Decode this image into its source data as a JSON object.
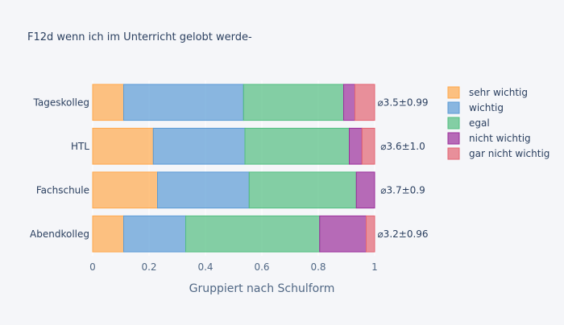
{
  "chart_data": {
    "type": "bar",
    "orientation": "horizontal",
    "stacked": true,
    "title": "F12d wenn ich im Unterricht gelobt werde-",
    "xlabel": "Gruppiert nach Schulform",
    "ylabel": "",
    "xlim": [
      0,
      1.2
    ],
    "x_ticks": [
      0,
      0.2,
      0.4,
      0.6,
      0.8,
      1
    ],
    "x_tick_labels": [
      "0",
      "0.2",
      "0.4",
      "0.6",
      "0.8",
      "1"
    ],
    "grid": true,
    "legend_position": "right",
    "categories": [
      "Abendkolleg",
      "Fachschule",
      "HTL",
      "Tageskolleg"
    ],
    "series": [
      {
        "name": "sehr wichtig",
        "color": "#FFA94D",
        "values": [
          0.11,
          0.23,
          0.215,
          0.11
        ]
      },
      {
        "name": "wichtig",
        "color": "#5B9BD5",
        "values": [
          0.22,
          0.325,
          0.325,
          0.425
        ]
      },
      {
        "name": "egal",
        "color": "#52BE80",
        "values": [
          0.475,
          0.38,
          0.37,
          0.355
        ]
      },
      {
        "name": "nicht wichtig",
        "color": "#9B2F9B",
        "values": [
          0.165,
          0.065,
          0.045,
          0.04
        ]
      },
      {
        "name": "gar nicht wichtig",
        "color": "#E36472",
        "values": [
          0.03,
          0.0,
          0.045,
          0.07
        ]
      }
    ],
    "annotations": [
      "⌀3.2±0.96",
      "⌀3.7±0.9",
      "⌀3.6±1.0",
      "⌀3.5±0.99"
    ]
  }
}
